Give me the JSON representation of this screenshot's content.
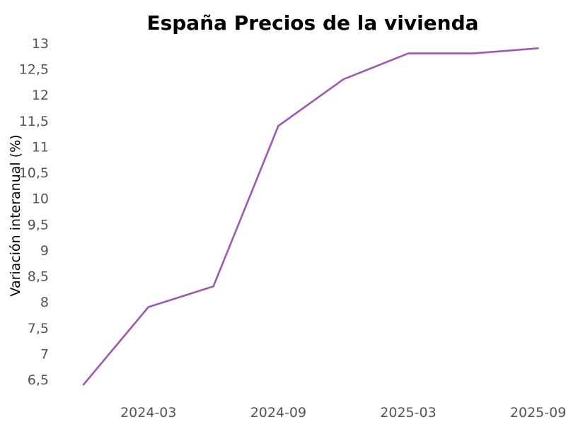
{
  "chart_data": {
    "type": "line",
    "title": "España Precios de la vivienda",
    "xlabel": "",
    "ylabel": "Variación interanual (%)",
    "x": [
      "2023-12",
      "2024-03",
      "2024-06",
      "2024-09",
      "2024-12",
      "2025-03",
      "2025-06",
      "2025-09"
    ],
    "series": [
      {
        "values": [
          6.4,
          7.9,
          8.3,
          11.4,
          12.3,
          12.8,
          12.8,
          12.9
        ]
      }
    ],
    "x_ticks": [
      "2024-03",
      "2024-09",
      "2025-03",
      "2025-09"
    ],
    "y_ticks": [
      "6,5",
      "7",
      "7,5",
      "8",
      "8,5",
      "9",
      "9,5",
      "10",
      "10,5",
      "11",
      "11,5",
      "12",
      "12,5",
      "13"
    ],
    "ylim": [
      6.5,
      13
    ],
    "grid": false,
    "legend": "none",
    "colors": {
      "line": "#9b59b6"
    }
  }
}
